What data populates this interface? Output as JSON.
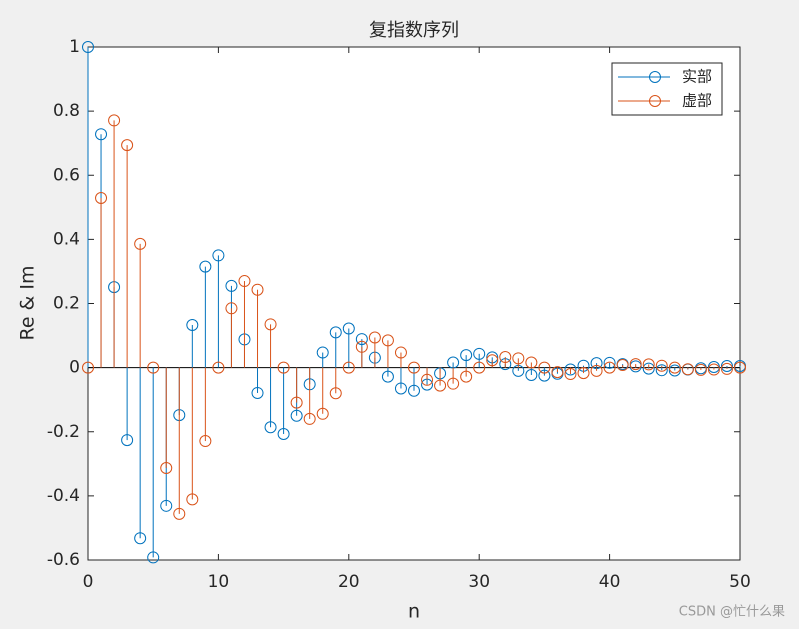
{
  "chart_data": {
    "type": "stem",
    "title": "复指数序列",
    "xlabel": "n",
    "ylabel": "Re & Im",
    "x": [
      0,
      1,
      2,
      3,
      4,
      5,
      6,
      7,
      8,
      9,
      10,
      11,
      12,
      13,
      14,
      15,
      16,
      17,
      18,
      19,
      20,
      21,
      22,
      23,
      24,
      25,
      26,
      27,
      28,
      29,
      30,
      31,
      32,
      33,
      34,
      35,
      36,
      37,
      38,
      39,
      40,
      41,
      42,
      43,
      44,
      45,
      46,
      47,
      48,
      49,
      50
    ],
    "series": [
      {
        "name": "实部",
        "color": "#0072BD",
        "values": [
          1,
          0.728,
          0.251,
          -0.226,
          -0.532,
          -0.592,
          -0.431,
          -0.148,
          0.133,
          0.315,
          0.35,
          0.255,
          0.088,
          -0.079,
          -0.186,
          -0.207,
          -0.15,
          -0.052,
          0.047,
          0.11,
          0.122,
          0.089,
          0.031,
          -0.028,
          -0.065,
          -0.072,
          -0.053,
          -0.018,
          0.016,
          0.039,
          0.043,
          0.032,
          0.011,
          -0.01,
          -0.023,
          -0.025,
          -0.019,
          -0.006,
          0.006,
          0.014,
          0.015,
          0.011,
          0.004,
          -0.003,
          -0.008,
          -0.009,
          -0.006,
          -0.002,
          0.002,
          0.005,
          0.005
        ]
      },
      {
        "name": "虚部",
        "color": "#D95319",
        "values": [
          0,
          0.529,
          0.771,
          0.694,
          0.386,
          0,
          -0.313,
          -0.456,
          -0.411,
          -0.229,
          0,
          0.185,
          0.27,
          0.243,
          0.135,
          0,
          -0.109,
          -0.16,
          -0.144,
          -0.08,
          0,
          0.065,
          0.094,
          0.085,
          0.047,
          0,
          -0.038,
          -0.056,
          -0.05,
          -0.028,
          0,
          0.023,
          0.033,
          0.029,
          0.016,
          0,
          -0.014,
          -0.02,
          -0.017,
          -0.01,
          0,
          0.008,
          0.011,
          0.01,
          0.006,
          0,
          -0.005,
          -0.007,
          -0.006,
          -0.004,
          0
        ]
      }
    ],
    "xlim": [
      0,
      50
    ],
    "xticks": [
      0,
      10,
      20,
      30,
      40,
      50
    ],
    "ylim": [
      -0.6,
      1
    ],
    "yticks": [
      -0.6,
      -0.4,
      -0.2,
      0,
      0.2,
      0.4,
      0.6,
      0.8,
      1
    ],
    "legend": "upper right",
    "watermark": "CSDN @忙什么果"
  }
}
